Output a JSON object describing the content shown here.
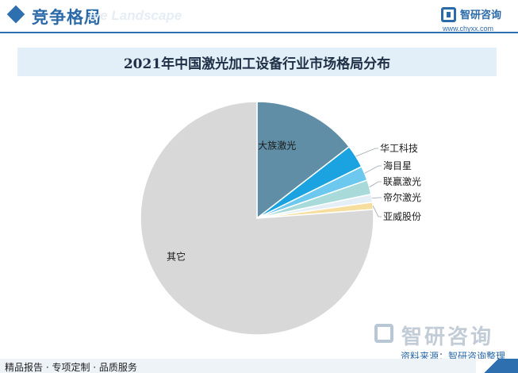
{
  "header": {
    "title": "竞争格局",
    "subtitle": "ive Landscape",
    "logo_name": "智研咨询",
    "logo_url": "www.chyxx.com"
  },
  "footer": {
    "source": "资料来源：智研咨询整理",
    "tagline": "精品报告 · 专项定制 · 品质服务",
    "watermark_logo": "智研咨询"
  },
  "chart_data": {
    "type": "pie",
    "title": "2021年中国激光加工设备行业市场格局分布",
    "start_angle_deg": 0,
    "direction": "clockwise",
    "slices": [
      {
        "label": "大族激光",
        "value": 14.5,
        "color": "#5f8ea6"
      },
      {
        "label": "华工科技",
        "value": 3.2,
        "color": "#1aa3e0"
      },
      {
        "label": "海目星",
        "value": 2.0,
        "color": "#6cc8ef"
      },
      {
        "label": "联赢激光",
        "value": 2.0,
        "color": "#a8dada"
      },
      {
        "label": "帝尔激光",
        "value": 1.1,
        "color": "#e3eef6"
      },
      {
        "label": "亚威股份",
        "value": 1.0,
        "color": "#f6df9e"
      },
      {
        "label": "其它",
        "value": 76.2,
        "color": "#d8d8d8"
      }
    ]
  }
}
